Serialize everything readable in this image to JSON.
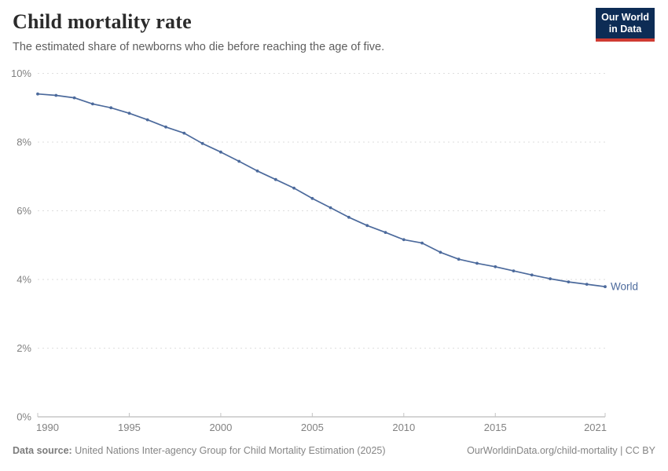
{
  "header": {
    "title": "Child mortality rate",
    "subtitle": "The estimated share of newborns who die before reaching the age of five.",
    "logo": {
      "line1": "Our World",
      "line2": "in Data"
    }
  },
  "chart_data": {
    "type": "line",
    "title": "Child mortality rate",
    "x": [
      1990,
      1991,
      1992,
      1993,
      1994,
      1995,
      1996,
      1997,
      1998,
      1999,
      2000,
      2001,
      2002,
      2003,
      2004,
      2005,
      2006,
      2007,
      2008,
      2009,
      2010,
      2011,
      2012,
      2013,
      2014,
      2015,
      2016,
      2017,
      2018,
      2019,
      2020,
      2021
    ],
    "series": [
      {
        "name": "World",
        "color": "#4C6A9C",
        "values": [
          9.4,
          9.36,
          9.29,
          9.11,
          9.0,
          8.84,
          8.65,
          8.44,
          8.26,
          7.96,
          7.71,
          7.44,
          7.16,
          6.91,
          6.66,
          6.36,
          6.09,
          5.81,
          5.57,
          5.37,
          5.16,
          5.06,
          4.79,
          4.59,
          4.47,
          4.37,
          4.25,
          4.13,
          4.02,
          3.93,
          3.86,
          3.79
        ]
      }
    ],
    "xlabel": "",
    "ylabel": "",
    "ylim": [
      0,
      10
    ],
    "y_ticks": [
      0,
      2,
      4,
      6,
      8,
      10
    ],
    "y_tick_labels": [
      "0%",
      "2%",
      "4%",
      "6%",
      "8%",
      "10%"
    ],
    "x_ticks": [
      1990,
      1995,
      2000,
      2005,
      2010,
      2015,
      2021
    ],
    "grid": "horizontal-dashed",
    "legend_position": "end-of-line",
    "end_label": "World"
  },
  "footer": {
    "data_source_label": "Data source:",
    "data_source_text": "United Nations Inter-agency Group for Child Mortality Estimation (2025)",
    "link_text": "OurWorldinData.org/child-mortality | CC BY"
  },
  "colors": {
    "line": "#4C6A9C",
    "end_label": "#4C6A9C",
    "gridline": "#dedede",
    "axis_line": "#a8a8a8",
    "axis_tick": "#c4c4c4",
    "tick_label": "#828282",
    "logo_bg": "#0d2c55",
    "logo_accent": "#cf3b32",
    "title": "#2b2b2b",
    "subtitle": "#5e5e5e",
    "footer_text": "#858585"
  }
}
